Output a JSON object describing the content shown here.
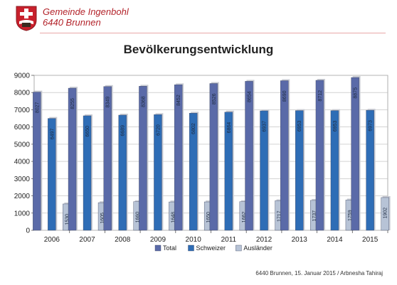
{
  "header": {
    "org_line1": "Gemeinde Ingenbohl",
    "org_line2": "6440 Brunnen"
  },
  "footer": "6440 Brunnen, 15. Januar 2015 / Arbnesha Tahiraj",
  "colors": {
    "total": "#5a6aa8",
    "schweizer": "#2e6db6",
    "auslaender": "#b7c3d6",
    "crest_red": "#c8202c"
  },
  "chart_data": {
    "type": "bar",
    "title": "Bevölkerungsentwicklung",
    "xlabel": "",
    "ylabel": "",
    "ylim": [
      0,
      9000
    ],
    "yticks": [
      0,
      1000,
      2000,
      3000,
      4000,
      5000,
      6000,
      7000,
      8000,
      9000
    ],
    "grid": true,
    "legend_position": "bottom",
    "categories": [
      "2006",
      "2007",
      "2008",
      "2009",
      "2010",
      "2011",
      "2012",
      "2013",
      "2014",
      "2015"
    ],
    "series": [
      {
        "name": "Total",
        "values": [
          8027,
          8255,
          8349,
          8368,
          8452,
          8526,
          8654,
          8690,
          8712,
          8875
        ]
      },
      {
        "name": "Schweizer",
        "values": [
          6497,
          6650,
          6689,
          6720,
          6802,
          6864,
          6937,
          6953,
          6953,
          6973
        ]
      },
      {
        "name": "Ausländer",
        "values": [
          1530,
          1605,
          1660,
          1648,
          1650,
          1662,
          1717,
          1737,
          1759,
          1902
        ]
      }
    ]
  }
}
